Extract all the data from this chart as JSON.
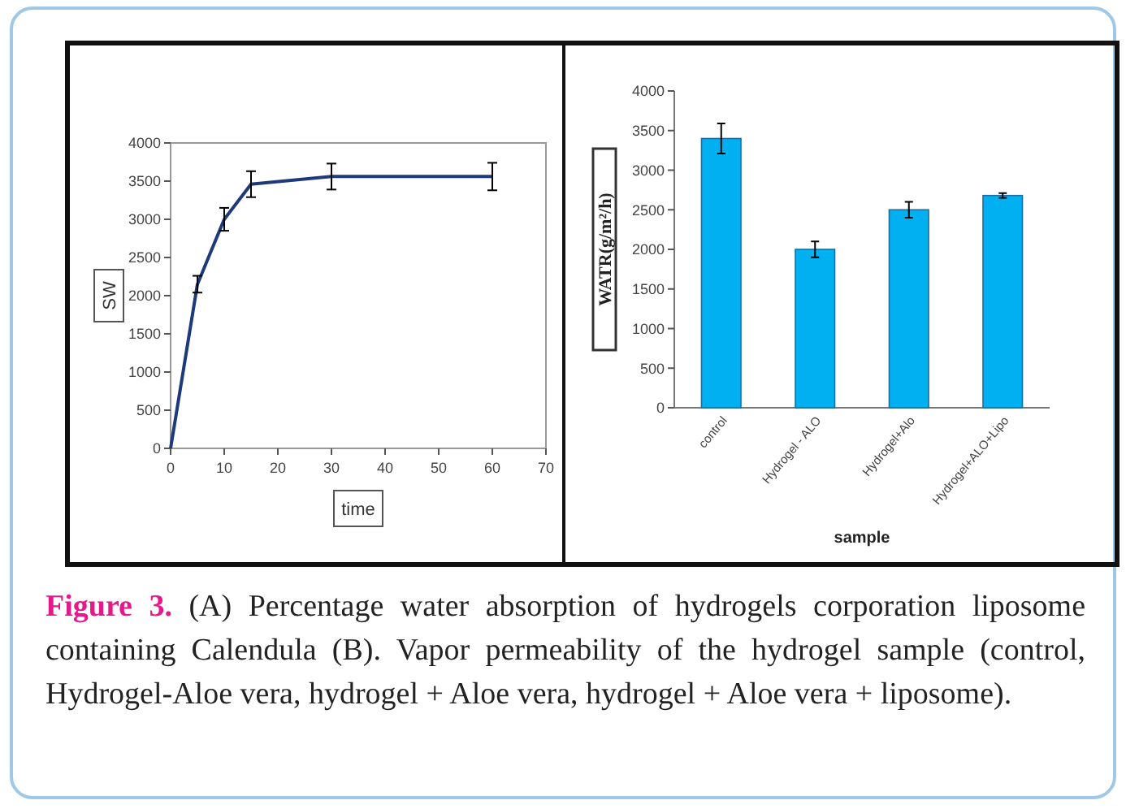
{
  "chart_data": [
    {
      "type": "line",
      "xlabel": "time",
      "ylabel": "SW",
      "x": [
        0,
        5,
        10,
        15,
        30,
        60
      ],
      "series": [
        {
          "color": "#1f3a7a",
          "values": [
            0,
            2150,
            3000,
            3460,
            3560,
            3560
          ],
          "errors": [
            null,
            110,
            150,
            170,
            170,
            180
          ]
        }
      ],
      "xlim": [
        0,
        70
      ],
      "xticks": [
        0,
        10,
        20,
        30,
        40,
        50,
        60,
        70
      ],
      "ylim": [
        0,
        4000
      ],
      "yticks": [
        0,
        500,
        1000,
        1500,
        2000,
        2500,
        3000,
        3500,
        4000
      ],
      "marker": "none",
      "line_style": "solid",
      "grid": false
    },
    {
      "type": "bar",
      "xlabel": "sample",
      "ylabel": "WATR(g/m²/h)",
      "categories": [
        "control",
        "Hydrogel - ALO",
        "Hydrogel+Alo",
        "Hydrogel+ALO+Lipo"
      ],
      "series": [
        {
          "color": "#00b0f0",
          "values": [
            3400,
            2000,
            2500,
            2680
          ],
          "errors": [
            190,
            100,
            100,
            30
          ]
        }
      ],
      "ylim": [
        0,
        4000
      ],
      "yticks": [
        0,
        500,
        1000,
        1500,
        2000,
        2500,
        3000,
        3500,
        4000
      ],
      "grid": false,
      "annotations": [
        "Figure 3.",
        "(A) Percentage water absorption of hydrogels corporation liposome containing Calendula (B). Vapor permeability of the hydrogel sample (control, Hydrogel-Aloe vera, hydrogel + Aloe vera, hydrogel + Aloe vera + liposome)."
      ]
    }
  ]
}
